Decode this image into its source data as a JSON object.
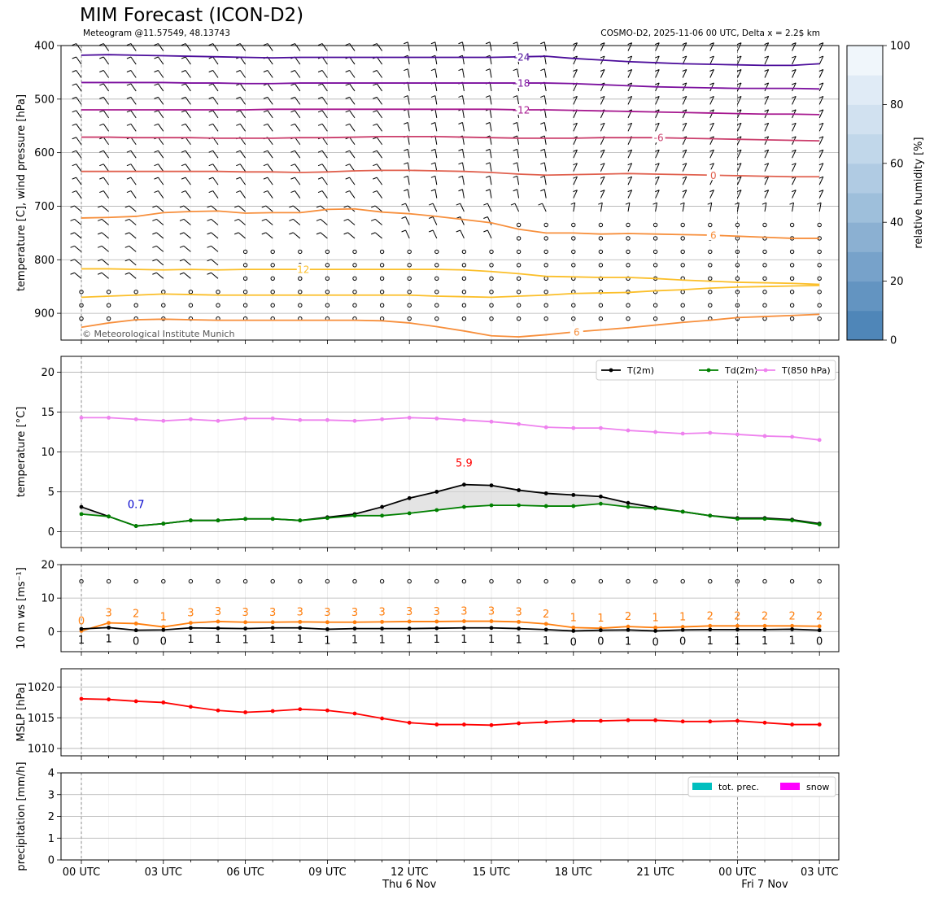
{
  "header": {
    "title": "MIM Forecast (ICON-D2)",
    "subtitle_left": "Meteogram @11.57549, 48.13743",
    "subtitle_right": "COSMO-D2, 2025-11-06 00 UTC, Delta x = 2.2$ km"
  },
  "colors": {
    "t2m": "#000000",
    "td2m": "#008000",
    "t850": "#ee82ee",
    "wind_gust": "#ff7f0e",
    "mslp": "#ff0000",
    "tot_prec": "#00bfbf",
    "snow": "#ff00ff"
  },
  "chart_data": [
    {
      "id": "profile",
      "type": "contour",
      "ylabel": "temperature [C], wind pressure [hPa]",
      "yticks": [
        400,
        500,
        600,
        700,
        800,
        900
      ],
      "ylim": [
        950,
        400
      ],
      "inverted_y": true,
      "watermark": "© Meteorological Institute Munich",
      "colorbar": {
        "label": "relative humidity [%]",
        "ticks": [
          0,
          20,
          40,
          60,
          80,
          100
        ]
      },
      "hours": [
        0,
        1,
        2,
        3,
        4,
        5,
        6,
        7,
        8,
        9,
        10,
        11,
        12,
        13,
        14,
        15,
        16,
        17,
        18,
        19,
        20,
        21,
        22,
        23,
        24,
        25,
        26,
        27
      ],
      "isotherms": [
        {
          "label": "-24",
          "color": "#4b0c9a",
          "label_hour": 16,
          "values": [
            418,
            417,
            418,
            419,
            420,
            421,
            422,
            423,
            422,
            422,
            422,
            422,
            422,
            422,
            422,
            422,
            421,
            420,
            424,
            427,
            430,
            432,
            434,
            435,
            436,
            437,
            437,
            434
          ]
        },
        {
          "label": "-18",
          "color": "#7b0f9e",
          "label_hour": 16,
          "values": [
            469,
            469,
            469,
            469,
            470,
            470,
            471,
            471,
            470,
            470,
            470,
            470,
            470,
            470,
            470,
            470,
            470,
            470,
            471,
            473,
            475,
            477,
            478,
            479,
            480,
            480,
            480,
            481
          ]
        },
        {
          "label": "-12",
          "color": "#a6188f",
          "label_hour": 16,
          "values": [
            520,
            520,
            520,
            520,
            520,
            520,
            520,
            519,
            519,
            519,
            519,
            519,
            519,
            519,
            519,
            519,
            520,
            520,
            521,
            522,
            523,
            524,
            525,
            526,
            527,
            528,
            528,
            529
          ]
        },
        {
          "label": "-6",
          "color": "#cb3e6c",
          "label_hour": 21,
          "values": [
            571,
            571,
            572,
            572,
            572,
            573,
            573,
            573,
            572,
            572,
            571,
            570,
            570,
            570,
            571,
            572,
            573,
            573,
            573,
            572,
            572,
            572,
            573,
            574,
            575,
            576,
            577,
            578
          ]
        },
        {
          "label": "0",
          "color": "#e0604e",
          "label_hour": 23,
          "values": [
            635,
            635,
            635,
            635,
            635,
            635,
            636,
            636,
            637,
            636,
            634,
            633,
            633,
            634,
            635,
            637,
            640,
            642,
            641,
            640,
            639,
            640,
            641,
            642,
            643,
            644,
            645,
            645
          ]
        },
        {
          "label": "6",
          "color": "#f78f3c",
          "label_hour": 23,
          "values": [
            722,
            721,
            719,
            712,
            710,
            709,
            713,
            712,
            712,
            706,
            705,
            711,
            714,
            719,
            725,
            731,
            743,
            750,
            750,
            752,
            751,
            752,
            753,
            754,
            756,
            758,
            760,
            760
          ]
        },
        {
          "label": "12",
          "color": "#fbbf2a",
          "label_hour": 8,
          "values": [
            817,
            817,
            818,
            819,
            818,
            819,
            818,
            818,
            818,
            818,
            818,
            818,
            818,
            818,
            819,
            822,
            826,
            831,
            832,
            833,
            833,
            835,
            838,
            840,
            842,
            843,
            844,
            846
          ]
        },
        {
          "label": "12b",
          "color": "#fbbf2a",
          "label_hour": -1,
          "values": [
            870,
            868,
            866,
            864,
            865,
            866,
            866,
            866,
            866,
            866,
            866,
            866,
            866,
            868,
            869,
            870,
            868,
            866,
            863,
            862,
            861,
            858,
            856,
            853,
            851,
            850,
            849,
            848
          ]
        },
        {
          "label": "6",
          "color": "#f78f3c",
          "label_hour": 18,
          "values": [
            926,
            918,
            912,
            911,
            912,
            913,
            913,
            913,
            913,
            913,
            913,
            914,
            918,
            925,
            933,
            942,
            944,
            940,
            935,
            931,
            927,
            922,
            917,
            913,
            908,
            906,
            904,
            902
          ]
        }
      ],
      "wind_calm_region": "lower-right"
    },
    {
      "id": "temperature",
      "type": "line",
      "ylabel": "temperature [$^\\circ$C]",
      "ylim": [
        -2,
        22
      ],
      "yticks": [
        0,
        5,
        10,
        15,
        20
      ],
      "legend_position": "top-right",
      "annotations": [
        {
          "text": "5.9",
          "hour": 14,
          "value": 5.9,
          "color": "#ff0000"
        },
        {
          "text": "0.7",
          "hour": 2,
          "value": 0.7,
          "color": "#0000cc"
        }
      ],
      "series": [
        {
          "name": "T(2m)",
          "color": "#000000",
          "values": [
            3.1,
            1.9,
            0.7,
            1.0,
            1.4,
            1.4,
            1.6,
            1.6,
            1.4,
            1.8,
            2.2,
            3.1,
            4.2,
            5.0,
            5.9,
            5.8,
            5.2,
            4.8,
            4.6,
            4.4,
            3.6,
            3.0,
            2.5,
            2.0,
            1.7,
            1.7,
            1.5,
            1.0
          ]
        },
        {
          "name": "Td(2m)",
          "color": "#008000",
          "values": [
            2.2,
            1.9,
            0.7,
            1.0,
            1.4,
            1.4,
            1.6,
            1.6,
            1.4,
            1.7,
            2.0,
            2.0,
            2.3,
            2.7,
            3.1,
            3.3,
            3.3,
            3.2,
            3.2,
            3.5,
            3.1,
            2.9,
            2.5,
            2.0,
            1.6,
            1.6,
            1.4,
            0.9
          ]
        },
        {
          "name": "T(850 hPa)",
          "color": "#ee82ee",
          "values": [
            14.3,
            14.3,
            14.1,
            13.9,
            14.1,
            13.9,
            14.2,
            14.2,
            14.0,
            14.0,
            13.9,
            14.1,
            14.3,
            14.2,
            14.0,
            13.8,
            13.5,
            13.1,
            13.0,
            13.0,
            12.7,
            12.5,
            12.3,
            12.4,
            12.2,
            12.0,
            11.9,
            11.5
          ]
        }
      ]
    },
    {
      "id": "wind",
      "type": "line",
      "ylabel": "10 m ws [ms$^{-1}$]",
      "ylim": [
        -6,
        20
      ],
      "yticks": [
        0,
        10,
        20
      ],
      "series": [
        {
          "name": "gust",
          "color": "#ff7f0e",
          "values": [
            0.2,
            2.6,
            2.4,
            1.4,
            2.6,
            3.0,
            2.8,
            2.8,
            2.9,
            2.8,
            2.8,
            2.9,
            3.0,
            3.0,
            3.1,
            3.1,
            2.9,
            2.3,
            1.2,
            1.0,
            1.5,
            1.2,
            1.4,
            1.7,
            1.7,
            1.7,
            1.7,
            1.6
          ]
        },
        {
          "name": "mean",
          "color": "#000000",
          "values": [
            0.8,
            1.2,
            0.4,
            0.5,
            1.1,
            1.0,
            0.9,
            1.1,
            1.1,
            0.7,
            0.9,
            0.9,
            0.9,
            1.0,
            1.1,
            1.1,
            0.9,
            0.6,
            0.2,
            0.4,
            0.5,
            0.2,
            0.5,
            0.6,
            0.6,
            0.6,
            0.7,
            0.4
          ]
        }
      ],
      "gust_labels": [
        "0",
        "3",
        "2",
        "1",
        "3",
        "3",
        "3",
        "3",
        "3",
        "3",
        "3",
        "3",
        "3",
        "3",
        "3",
        "3",
        "3",
        "2",
        "1",
        "1",
        "2",
        "1",
        "1",
        "2",
        "2",
        "2",
        "2",
        "2"
      ],
      "mean_labels": [
        "1",
        "1",
        "0",
        "0",
        "1",
        "1",
        "1",
        "1",
        "1",
        "1",
        "1",
        "1",
        "1",
        "1",
        "1",
        "1",
        "1",
        "1",
        "0",
        "0",
        "1",
        "0",
        "0",
        "1",
        "1",
        "1",
        "1",
        "0"
      ]
    },
    {
      "id": "mslp",
      "type": "line",
      "ylabel": "MSLP [hPa]",
      "ylim": [
        1008.8,
        1023
      ],
      "yticks": [
        1010,
        1015,
        1020
      ],
      "series": [
        {
          "name": "MSLP",
          "color": "#ff0000",
          "values": [
            1018.1,
            1018.0,
            1017.7,
            1017.5,
            1016.8,
            1016.2,
            1015.9,
            1016.1,
            1016.4,
            1016.2,
            1015.7,
            1014.9,
            1014.2,
            1013.9,
            1013.9,
            1013.8,
            1014.1,
            1014.3,
            1014.5,
            1014.5,
            1014.6,
            1014.6,
            1014.4,
            1014.4,
            1014.5,
            1014.2,
            1013.9,
            1013.9
          ]
        }
      ]
    },
    {
      "id": "precipitation",
      "type": "bar",
      "ylabel": "precipitation [mm/h]",
      "ylim": [
        0,
        4
      ],
      "yticks": [
        0,
        1,
        2,
        3,
        4
      ],
      "legend_position": "top-right",
      "series": [
        {
          "name": "tot. prec.",
          "color": "#00bfbf",
          "values": [
            0,
            0,
            0,
            0,
            0,
            0,
            0,
            0,
            0,
            0,
            0,
            0,
            0,
            0,
            0,
            0,
            0,
            0,
            0,
            0,
            0,
            0,
            0,
            0,
            0,
            0,
            0,
            0
          ]
        },
        {
          "name": "snow",
          "color": "#ff00ff",
          "values": [
            0,
            0,
            0,
            0,
            0,
            0,
            0,
            0,
            0,
            0,
            0,
            0,
            0,
            0,
            0,
            0,
            0,
            0,
            0,
            0,
            0,
            0,
            0,
            0,
            0,
            0,
            0,
            0
          ]
        }
      ]
    }
  ],
  "xaxis": {
    "tick_hours": [
      0,
      3,
      6,
      9,
      12,
      15,
      18,
      21,
      24,
      27
    ],
    "tick_labels": [
      "00 UTC",
      "03 UTC",
      "06 UTC",
      "09 UTC",
      "12 UTC",
      "15 UTC",
      "18 UTC",
      "21 UTC",
      "00 UTC",
      "03 UTC"
    ],
    "date_labels": [
      {
        "hour": 12,
        "text": "Thu 6 Nov"
      },
      {
        "hour": 25,
        "text": "Fri 7 Nov"
      }
    ]
  }
}
